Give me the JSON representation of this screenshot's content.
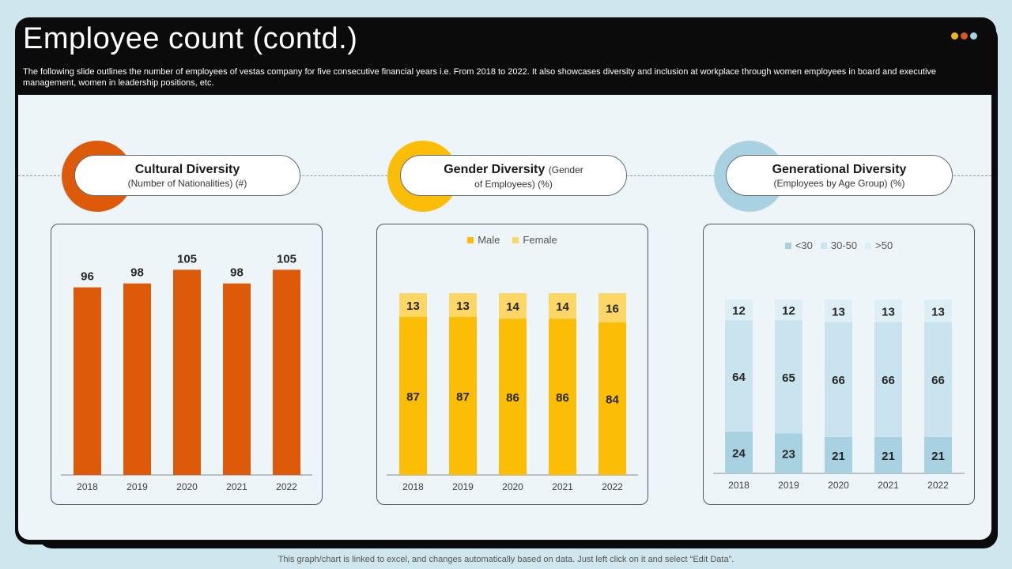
{
  "slide": {
    "title": "Employee count (contd.)",
    "subtitle": "The following slide outlines the number of employees of vestas company for five  consecutive financial years i.e. From 2018 to  2022. It  also showcases diversity and inclusion at workplace through women employees in board and executive  management, women in leadership positions, etc.",
    "footer": "This graph/chart is linked to excel,  and changes automatically based on data. Just left click on it and select “Edit Data”.",
    "accent_dots": [
      "#f2b51c",
      "#d9581a",
      "#a7d3e3"
    ]
  },
  "sections": [
    {
      "title": "Cultural Diversity",
      "subtitle": "(Number  of  Nationalities) (#)",
      "ring_color": "#de5a0b"
    },
    {
      "title": "Gender Diversity",
      "title_suffix": "(Gender",
      "subtitle": "of Employees) (%)",
      "ring_color": "#fbbd05"
    },
    {
      "title": "Generational Diversity",
      "subtitle": "(Employees by Age Group) (%)",
      "ring_color": "#a8d2e2"
    }
  ],
  "chart_data": [
    {
      "type": "bar",
      "categories": [
        "2018",
        "2019",
        "2020",
        "2021",
        "2022"
      ],
      "values": [
        96,
        98,
        105,
        98,
        105
      ],
      "colors": [
        "#de5a0b"
      ],
      "data_labels": true
    },
    {
      "type": "bar",
      "stacked": true,
      "categories": [
        "2018",
        "2019",
        "2020",
        "2021",
        "2022"
      ],
      "series": [
        {
          "name": "Male",
          "values": [
            87,
            87,
            86,
            86,
            84
          ],
          "color": "#fbbd05"
        },
        {
          "name": "Female",
          "values": [
            13,
            13,
            14,
            14,
            16
          ],
          "color": "#fcd766"
        }
      ],
      "legend": "top",
      "data_labels": true
    },
    {
      "type": "bar",
      "stacked": true,
      "categories": [
        "2018",
        "2019",
        "2020",
        "2021",
        "2022"
      ],
      "series": [
        {
          "name": "<30",
          "values": [
            24,
            23,
            21,
            21,
            21
          ],
          "color": "#a8d2e2"
        },
        {
          "name": "30-50",
          "values": [
            64,
            65,
            66,
            66,
            66
          ],
          "color": "#c9e4ee"
        },
        {
          "name": ">50",
          "values": [
            12,
            12,
            13,
            13,
            13
          ],
          "color": "#ddeef4"
        }
      ],
      "legend": "top",
      "data_labels": true
    }
  ]
}
